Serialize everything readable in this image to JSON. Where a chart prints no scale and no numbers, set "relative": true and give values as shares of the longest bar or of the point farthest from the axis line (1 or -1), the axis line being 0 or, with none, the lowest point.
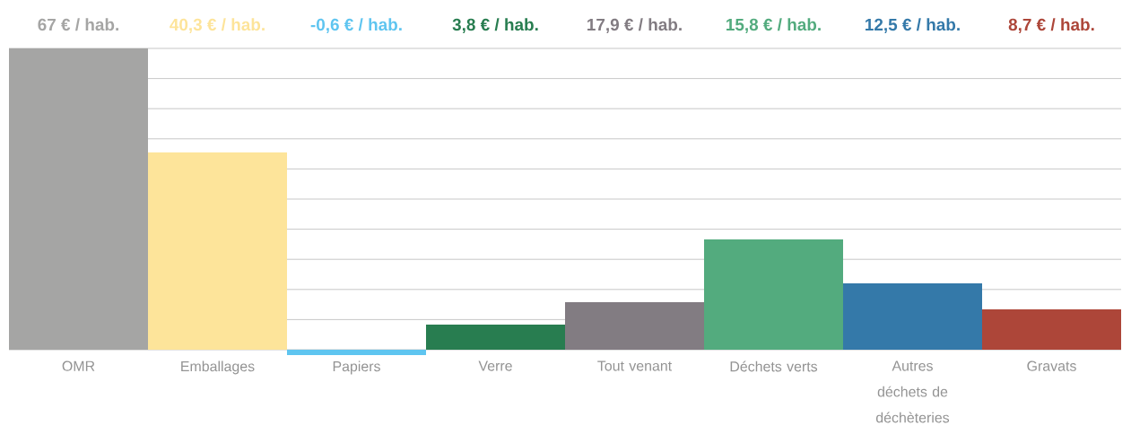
{
  "chart_data": {
    "type": "bar",
    "relative": true,
    "grid": "y",
    "categories": [
      "OMR",
      "Emballages",
      "Papiers",
      "Verre",
      "Tout venant",
      "Déchets verts",
      "Autres déchets de déchèteries",
      "Gravats"
    ],
    "values": [
      1,
      0.655,
      -0.018,
      0.083,
      0.158,
      0.366,
      0.22,
      0.134
    ],
    "colors": [
      "#a5a5a4",
      "#fde49a",
      "#5fc5f0",
      "#287d50",
      "#827c82",
      "#53ab7e",
      "#3479a9",
      "#ad4639"
    ],
    "annotations": [
      "67 € / hab.",
      "40,3 € / hab.",
      "-0,6 € / hab.",
      "3,8 € / hab.",
      "17,9 € / hab.",
      "15,8 € / hab.",
      "12,5 € / hab.",
      "8,7 € / hab."
    ]
  }
}
